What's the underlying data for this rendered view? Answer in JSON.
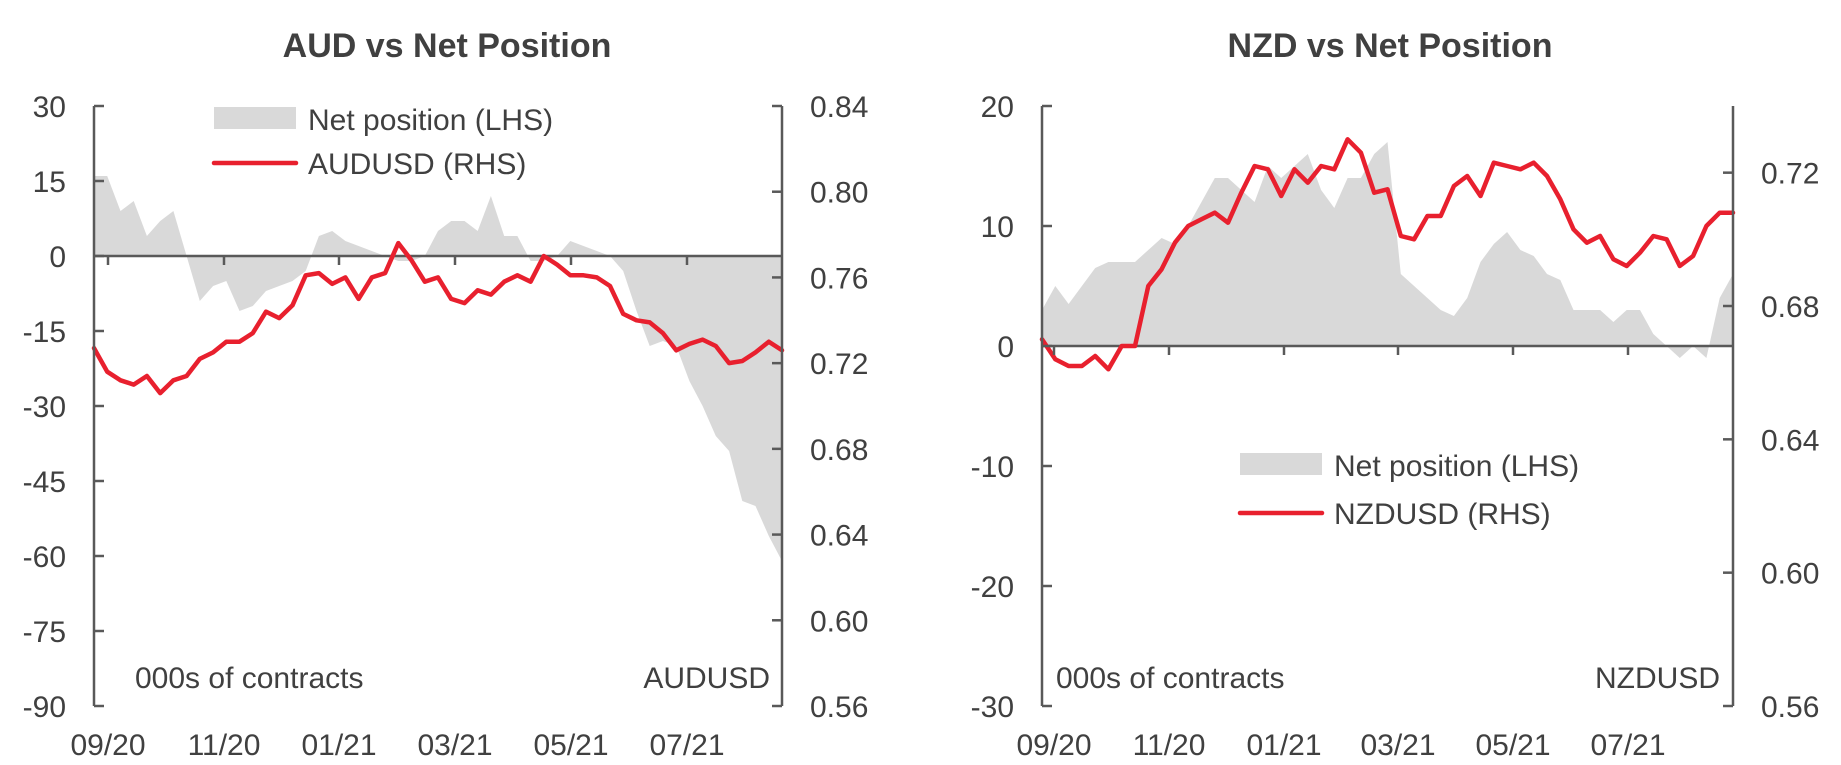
{
  "chart_data": [
    {
      "type": "area+line",
      "title": "AUD vs Net Position",
      "left_axis_note": "000s of contracts",
      "right_axis_note": "AUDUSD",
      "ylim_left": [
        -90,
        30
      ],
      "yticks_left": [
        30,
        15,
        0,
        -15,
        -30,
        -45,
        -60,
        -75,
        -90
      ],
      "ylim_right": [
        0.56,
        0.84
      ],
      "yticks_right": [
        "0.84",
        "0.80",
        "0.76",
        "0.72",
        "0.68",
        "0.64",
        "0.60",
        "0.56"
      ],
      "x_tick_labels": [
        "09/20",
        "11/20",
        "01/21",
        "03/21",
        "05/21",
        "07/21"
      ],
      "x_points": 53,
      "legend": {
        "position": "top-center",
        "area_label": "Net position (LHS)",
        "line_label": "AUDUSD (RHS)"
      },
      "colors": {
        "area": "#d9d9d9",
        "line": "#e8202e"
      },
      "series": [
        {
          "name": "Net position (LHS)",
          "kind": "area",
          "axis": "left",
          "values": [
            16,
            16,
            9,
            11,
            4,
            7,
            9,
            0,
            -9,
            -6,
            -5,
            -11,
            -10,
            -7,
            -6,
            -5,
            -3,
            4,
            5,
            3,
            2,
            1,
            0,
            -1,
            -1,
            0,
            5,
            7,
            7,
            5,
            12,
            4,
            4,
            -1,
            -1,
            0,
            3,
            2,
            1,
            0,
            -3,
            -11,
            -18,
            -17,
            -18,
            -25,
            -30,
            -36,
            -39,
            -49,
            -50,
            -56,
            -61
          ]
        },
        {
          "name": "AUDUSD (RHS)",
          "kind": "line",
          "axis": "right",
          "values": [
            0.727,
            0.716,
            0.712,
            0.71,
            0.714,
            0.706,
            0.712,
            0.714,
            0.722,
            0.725,
            0.73,
            0.73,
            0.734,
            0.744,
            0.741,
            0.747,
            0.761,
            0.762,
            0.757,
            0.76,
            0.75,
            0.76,
            0.762,
            0.776,
            0.768,
            0.758,
            0.76,
            0.75,
            0.748,
            0.754,
            0.752,
            0.758,
            0.761,
            0.758,
            0.77,
            0.766,
            0.761,
            0.761,
            0.76,
            0.756,
            0.743,
            0.74,
            0.739,
            0.734,
            0.726,
            0.729,
            0.731,
            0.728,
            0.72,
            0.721,
            0.725,
            0.73,
            0.726
          ]
        }
      ]
    },
    {
      "type": "area+line",
      "title": "NZD vs Net Position",
      "left_axis_note": "000s of contracts",
      "right_axis_note": "NZDUSD",
      "ylim_left": [
        -30,
        20
      ],
      "yticks_left": [
        20,
        10,
        0,
        -10,
        -20,
        -30
      ],
      "ylim_right": [
        0.56,
        0.74
      ],
      "yticks_right": [
        "0.72",
        "0.68",
        "0.64",
        "0.60",
        "0.56"
      ],
      "x_tick_labels": [
        "09/20",
        "11/20",
        "01/21",
        "03/21",
        "05/21",
        "07/21"
      ],
      "x_points": 53,
      "legend": {
        "position": "middle-right",
        "area_label": "Net position (LHS)",
        "line_label": "NZDUSD (RHS)"
      },
      "colors": {
        "area": "#d9d9d9",
        "line": "#e8202e"
      },
      "series": [
        {
          "name": "Net position (LHS)",
          "kind": "area",
          "axis": "left",
          "values": [
            3,
            5,
            3.5,
            5,
            6.5,
            7,
            7,
            7,
            8,
            9,
            8.5,
            10,
            12,
            14,
            14,
            13,
            12,
            15,
            14,
            15,
            16,
            13,
            11.5,
            14,
            14,
            16,
            17,
            6,
            5,
            4,
            3,
            2.5,
            4,
            7,
            8.5,
            9.5,
            8,
            7.5,
            6,
            5.5,
            3,
            3,
            3,
            2,
            3,
            3,
            1,
            0,
            -1,
            0,
            -1,
            4,
            6
          ]
        },
        {
          "name": "NZDUSD (RHS)",
          "kind": "line",
          "axis": "right",
          "values": [
            0.67,
            0.664,
            0.662,
            0.662,
            0.665,
            0.661,
            0.668,
            0.668,
            0.686,
            0.691,
            0.699,
            0.704,
            0.706,
            0.708,
            0.705,
            0.714,
            0.722,
            0.721,
            0.713,
            0.721,
            0.717,
            0.722,
            0.721,
            0.73,
            0.726,
            0.714,
            0.715,
            0.701,
            0.7,
            0.707,
            0.707,
            0.716,
            0.719,
            0.713,
            0.723,
            0.722,
            0.721,
            0.723,
            0.719,
            0.712,
            0.703,
            0.699,
            0.701,
            0.694,
            0.692,
            0.696,
            0.701,
            0.7,
            0.692,
            0.695,
            0.704,
            0.708,
            0.708
          ]
        }
      ]
    }
  ]
}
